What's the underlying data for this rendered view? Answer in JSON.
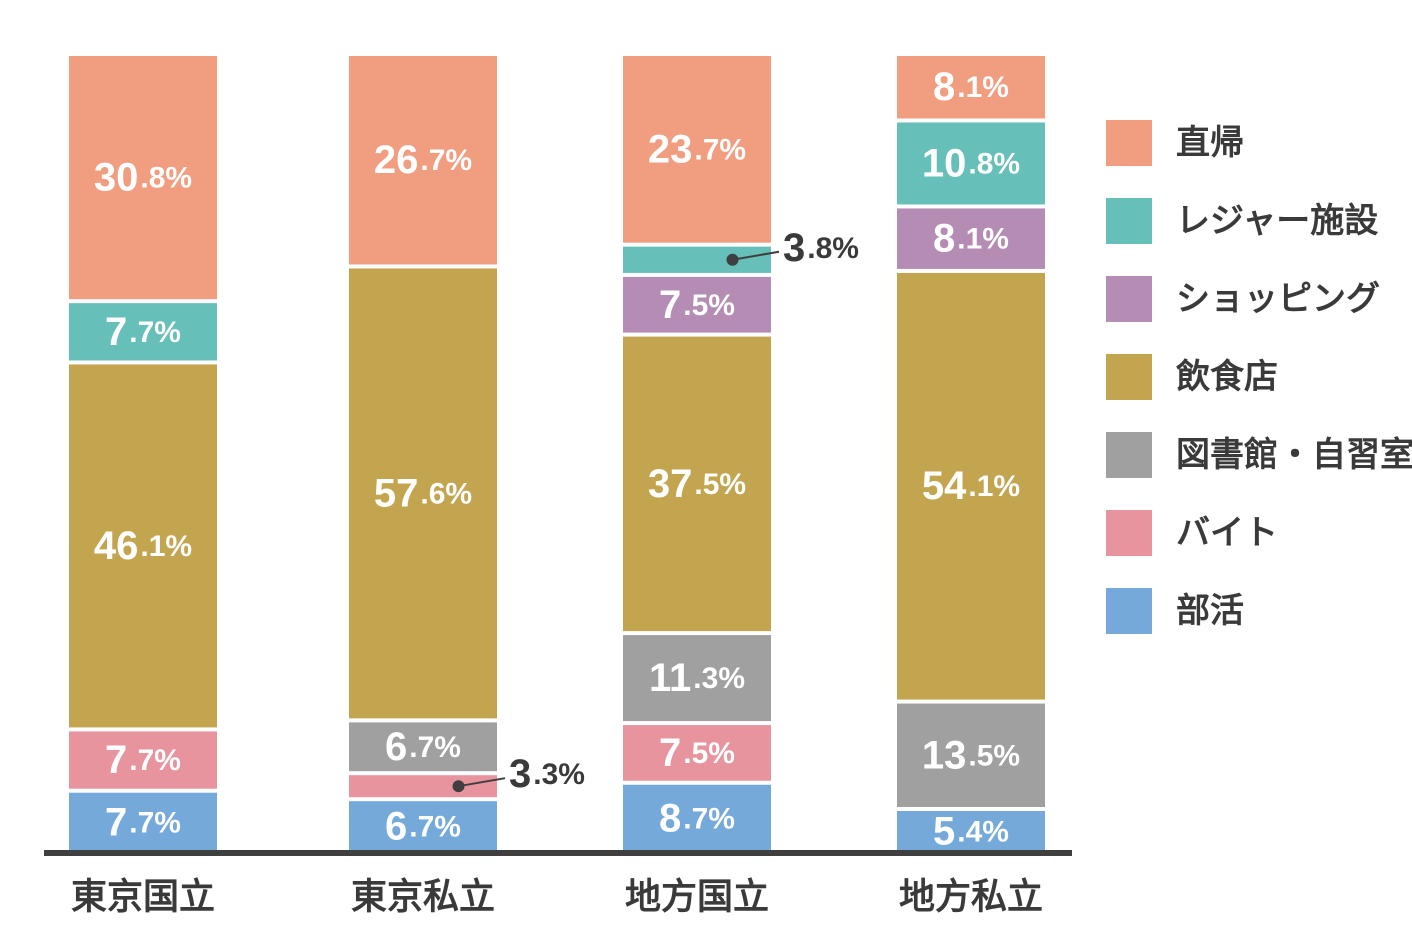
{
  "chart_data": {
    "type": "bar",
    "stacked": true,
    "normalized": true,
    "categories": [
      "東京国立",
      "東京私立",
      "地方国立",
      "地方私立"
    ],
    "series": [
      {
        "name": "部活",
        "color": "#75a9d9",
        "values": [
          7.7,
          6.7,
          8.7,
          5.4
        ]
      },
      {
        "name": "バイト",
        "color": "#e8949f",
        "values": [
          7.7,
          3.3,
          7.5,
          0
        ]
      },
      {
        "name": "図書館・自習室",
        "color": "#a0a0a0",
        "values": [
          0,
          6.7,
          11.3,
          13.5
        ]
      },
      {
        "name": "飲食店",
        "color": "#c4a54f",
        "values": [
          46.1,
          57.6,
          37.5,
          54.1
        ]
      },
      {
        "name": "ショッピング",
        "color": "#b48cb4",
        "values": [
          0,
          0,
          7.5,
          8.1
        ]
      },
      {
        "name": "レジャー施設",
        "color": "#66bfb9",
        "values": [
          7.7,
          0,
          3.8,
          10.8
        ]
      },
      {
        "name": "直帰",
        "color": "#f09d80",
        "values": [
          30.8,
          26.7,
          23.7,
          8.1
        ]
      }
    ],
    "legend_order": [
      "直帰",
      "レジャー施設",
      "ショッピング",
      "飲食店",
      "図書館・自習室",
      "バイト",
      "部活"
    ],
    "legend_position": "right",
    "value_suffix": "%",
    "title": "",
    "xlabel": "",
    "ylabel": "",
    "ylim": [
      0,
      100
    ],
    "grid": false
  }
}
